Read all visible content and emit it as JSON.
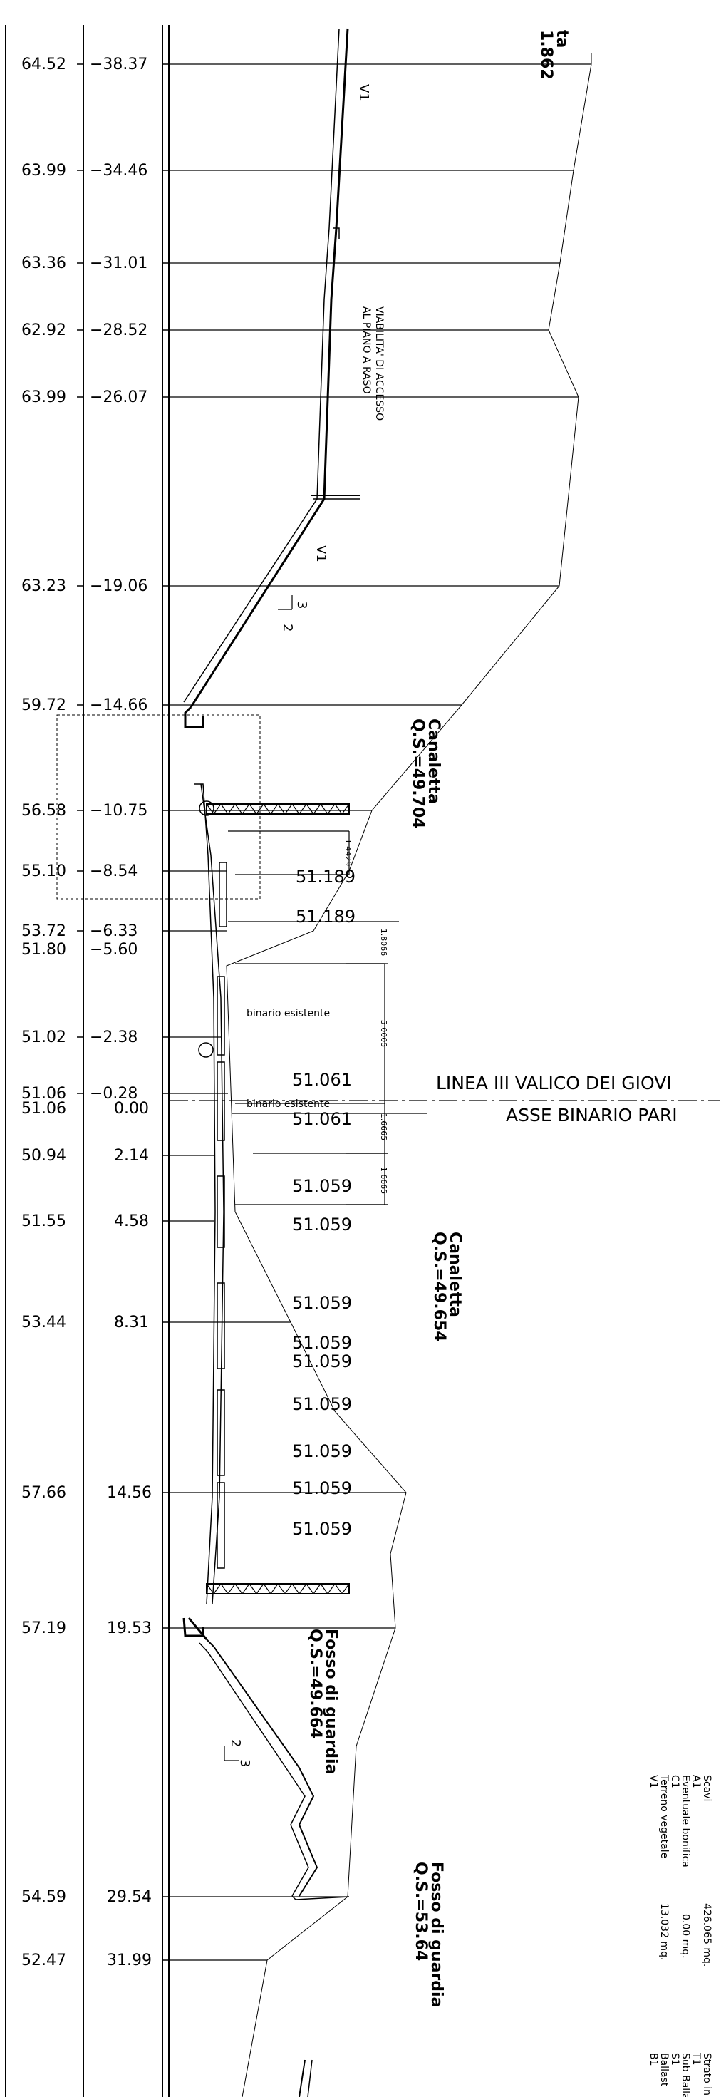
{
  "rows": [
    {
      "elev": "64.52",
      "dist": "−38.37"
    },
    {
      "elev": "63.99",
      "dist": "−34.46"
    },
    {
      "elev": "63.36",
      "dist": "−31.01"
    },
    {
      "elev": "62.92",
      "dist": "−28.52"
    },
    {
      "elev": "63.99",
      "dist": "−26.07"
    },
    {
      "elev": "63.23",
      "dist": "−19.06"
    },
    {
      "elev": "59.72",
      "dist": "−14.66"
    },
    {
      "elev": "56.58",
      "dist": "−10.75"
    },
    {
      "elev": "55.10",
      "dist": "−8.54"
    },
    {
      "elev": "53.72",
      "dist": "−6.33"
    },
    {
      "elev": "51.80",
      "dist": "−5.60"
    },
    {
      "elev": "51.02",
      "dist": "−2.38"
    },
    {
      "elev": "51.06",
      "dist": "−0.28"
    },
    {
      "elev": "51.06",
      "dist": "0.00"
    },
    {
      "elev": "50.94",
      "dist": "2.14"
    },
    {
      "elev": "51.55",
      "dist": "4.58"
    },
    {
      "elev": "53.44",
      "dist": "8.31"
    },
    {
      "elev": "57.66",
      "dist": "14.56"
    },
    {
      "elev": "57.19",
      "dist": "19.53"
    },
    {
      "elev": "54.59",
      "dist": "29.54"
    },
    {
      "elev": "52.47",
      "dist": "31.99"
    }
  ],
  "levels": [
    "51.189",
    "51.189",
    "51.061",
    "51.061",
    "51.059",
    "51.059",
    "51.059",
    "51.059",
    "51.059",
    "51.059",
    "51.059",
    "51.059",
    "51.059"
  ],
  "dims": [
    "1.4429",
    "1.8066",
    "5.0005",
    "1.6665",
    "1.6665"
  ],
  "top_label": {
    "line1": "ta",
    "line2": "1.862"
  },
  "markers": {
    "v1_a": "V1",
    "v1_b": "V1",
    "slope_a_top": "3",
    "slope_a_bottom": "2",
    "slope_b_top": "2",
    "slope_b_bottom": "3"
  },
  "viability": {
    "line1": "VIABILITA' DI ACCESSO",
    "line2": "AL PIANO A RASO"
  },
  "canaletta_1": {
    "line1": "Canaletta",
    "line2": "Q.S.=49.704"
  },
  "canaletta_2": {
    "line1": "Canaletta",
    "line2": "Q.S.=49.654"
  },
  "fosso_1": {
    "line1": "Fosso di guardia",
    "line2": "Q.S.=49.664"
  },
  "fosso_2": {
    "line1": "Fosso di guardia",
    "line2": "Q.S.=53.64"
  },
  "tracks": {
    "t1": "binario esistente",
    "t2": "binario esistente"
  },
  "axis": {
    "line1": "LINEA III VALICO DEI GIOVI",
    "line2": "ASSE BINARIO PARI"
  },
  "legend": {
    "col1": [
      "Scavi",
      "A1",
      "Eventuale bonifica",
      "C1",
      "Terreno vegetale",
      "V1"
    ],
    "col2": [
      "426.065 mq.",
      "",
      "0.00 mq.",
      "",
      "13.032 mq.",
      ""
    ],
    "col3": [
      "Strato in terra",
      "T1",
      "Sub Ballast",
      "S1",
      "Ballast",
      "B1"
    ]
  }
}
